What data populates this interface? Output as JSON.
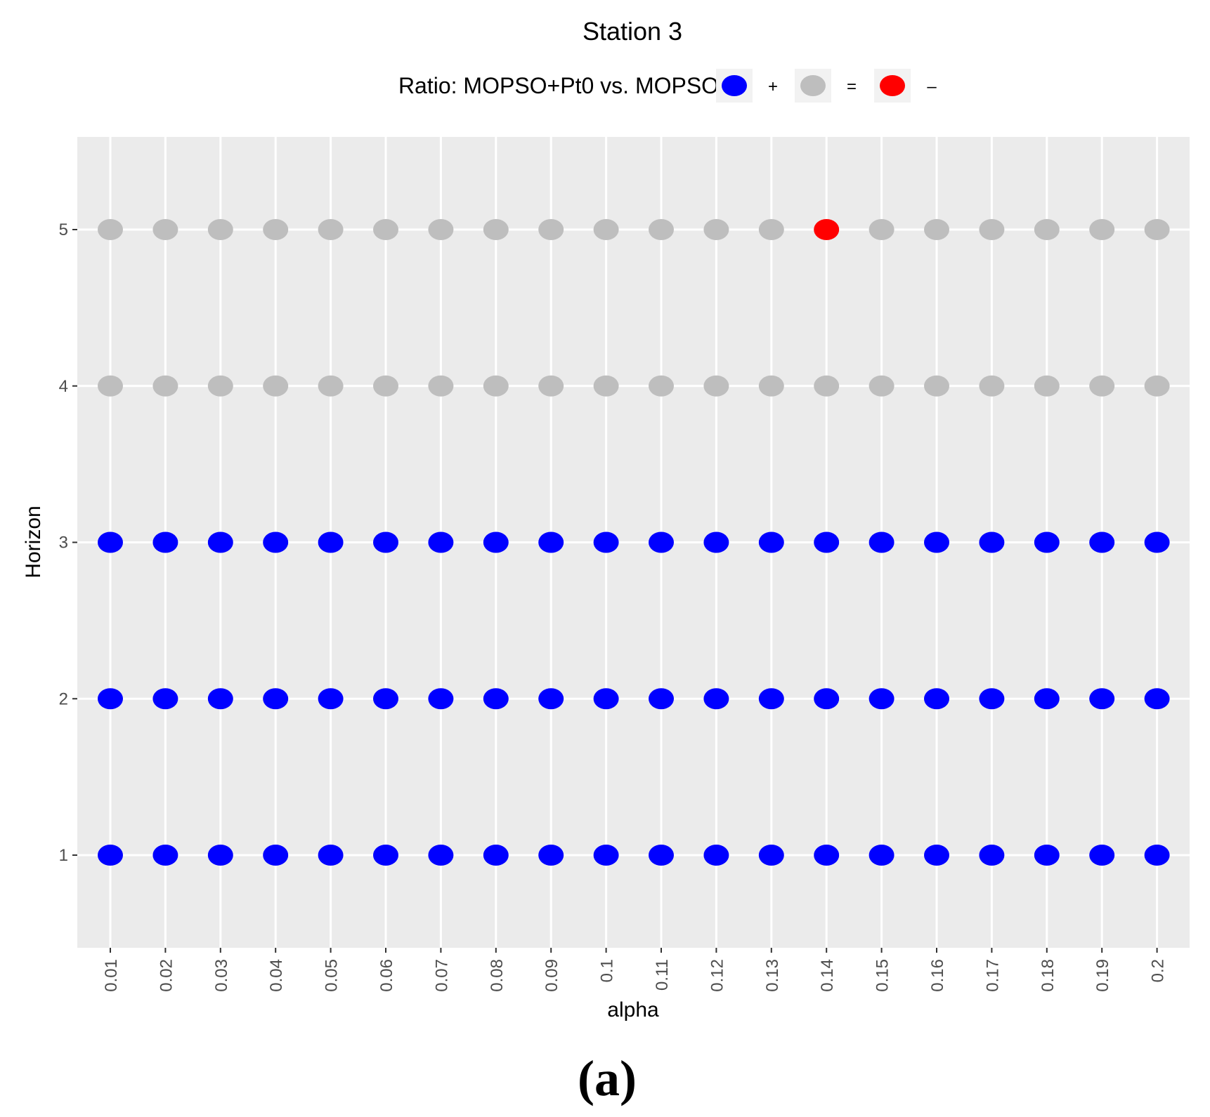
{
  "chart_data": {
    "type": "scatter",
    "title": "Station 3",
    "xlabel": "alpha",
    "ylabel": "Horizon",
    "categories": [
      "0.01",
      "0.02",
      "0.03",
      "0.04",
      "0.05",
      "0.06",
      "0.07",
      "0.08",
      "0.09",
      "0.1",
      "0.11",
      "0.12",
      "0.13",
      "0.14",
      "0.15",
      "0.16",
      "0.17",
      "0.18",
      "0.19",
      "0.2"
    ],
    "y_ticks": [
      "1",
      "2",
      "3",
      "4",
      "5"
    ],
    "ylim": [
      0.4,
      5.6
    ],
    "grid": true,
    "legend": {
      "title": "Ratio: MOPSO+Pt0 vs. MOPSO",
      "placement": "top",
      "entries": [
        {
          "key": "+",
          "label": "+",
          "color": "#0000FF"
        },
        {
          "key": "=",
          "label": "=",
          "color": "#BEBEBE"
        },
        {
          "key": "-",
          "label": "–",
          "color": "#FF0000"
        }
      ]
    },
    "rows": [
      {
        "horizon": 1,
        "values": [
          "+",
          "+",
          "+",
          "+",
          "+",
          "+",
          "+",
          "+",
          "+",
          "+",
          "+",
          "+",
          "+",
          "+",
          "+",
          "+",
          "+",
          "+",
          "+",
          "+"
        ]
      },
      {
        "horizon": 2,
        "values": [
          "+",
          "+",
          "+",
          "+",
          "+",
          "+",
          "+",
          "+",
          "+",
          "+",
          "+",
          "+",
          "+",
          "+",
          "+",
          "+",
          "+",
          "+",
          "+",
          "+"
        ]
      },
      {
        "horizon": 3,
        "values": [
          "+",
          "+",
          "+",
          "+",
          "+",
          "+",
          "+",
          "+",
          "+",
          "+",
          "+",
          "+",
          "+",
          "+",
          "+",
          "+",
          "+",
          "+",
          "+",
          "+"
        ]
      },
      {
        "horizon": 4,
        "values": [
          "=",
          "=",
          "=",
          "=",
          "=",
          "=",
          "=",
          "=",
          "=",
          "=",
          "=",
          "=",
          "=",
          "=",
          "=",
          "=",
          "=",
          "=",
          "=",
          "="
        ]
      },
      {
        "horizon": 5,
        "values": [
          "=",
          "=",
          "=",
          "=",
          "=",
          "=",
          "=",
          "=",
          "=",
          "=",
          "=",
          "=",
          "=",
          "-",
          "=",
          "=",
          "=",
          "=",
          "=",
          "="
        ]
      }
    ],
    "panel_background": "#EBEBEB",
    "grid_color": "#FFFFFF"
  },
  "caption": "(a)"
}
